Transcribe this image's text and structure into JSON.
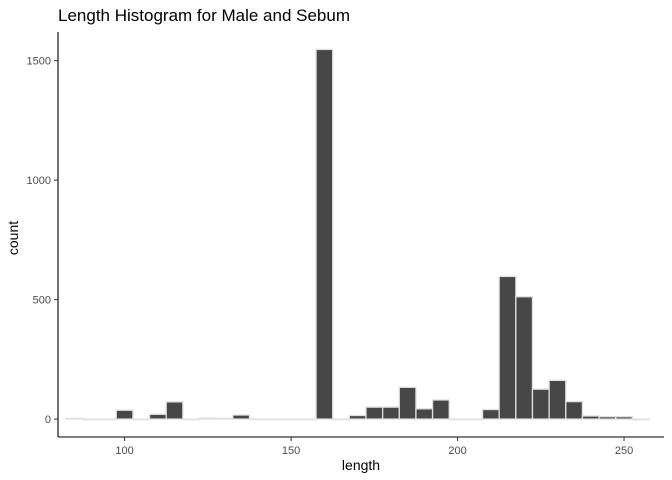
{
  "chart_data": {
    "type": "bar",
    "title": "Length Histogram for Male and Sebum",
    "xlabel": "length",
    "ylabel": "count",
    "xlim": [
      80,
      262
    ],
    "ylim": [
      -75,
      1620
    ],
    "x_ticks": [
      "100",
      "150",
      "200",
      "250"
    ],
    "y_ticks": [
      "0",
      "500",
      "1000",
      "1500"
    ],
    "grid": false,
    "legend": "none",
    "bin_width": 5,
    "bins": [
      {
        "x": 85,
        "count": 3
      },
      {
        "x": 90,
        "count": 0
      },
      {
        "x": 95,
        "count": 0
      },
      {
        "x": 100,
        "count": 37
      },
      {
        "x": 105,
        "count": 0
      },
      {
        "x": 110,
        "count": 20
      },
      {
        "x": 115,
        "count": 72
      },
      {
        "x": 120,
        "count": 0
      },
      {
        "x": 125,
        "count": 4
      },
      {
        "x": 130,
        "count": 3
      },
      {
        "x": 135,
        "count": 17
      },
      {
        "x": 140,
        "count": 0
      },
      {
        "x": 145,
        "count": 0
      },
      {
        "x": 150,
        "count": 0
      },
      {
        "x": 155,
        "count": 0
      },
      {
        "x": 160,
        "count": 1547
      },
      {
        "x": 165,
        "count": 0
      },
      {
        "x": 170,
        "count": 15
      },
      {
        "x": 175,
        "count": 50
      },
      {
        "x": 180,
        "count": 50
      },
      {
        "x": 185,
        "count": 133
      },
      {
        "x": 190,
        "count": 43
      },
      {
        "x": 195,
        "count": 80
      },
      {
        "x": 200,
        "count": 0
      },
      {
        "x": 205,
        "count": 0
      },
      {
        "x": 210,
        "count": 40
      },
      {
        "x": 215,
        "count": 597
      },
      {
        "x": 220,
        "count": 512
      },
      {
        "x": 225,
        "count": 125
      },
      {
        "x": 230,
        "count": 162
      },
      {
        "x": 235,
        "count": 73
      },
      {
        "x": 240,
        "count": 13
      },
      {
        "x": 245,
        "count": 10
      },
      {
        "x": 250,
        "count": 10
      },
      {
        "x": 255,
        "count": 0
      }
    ],
    "colors": {
      "fill": "#474747",
      "stroke": "#e0e0e0",
      "axis": "#000000",
      "tick_label": "#4d4d4d"
    }
  }
}
